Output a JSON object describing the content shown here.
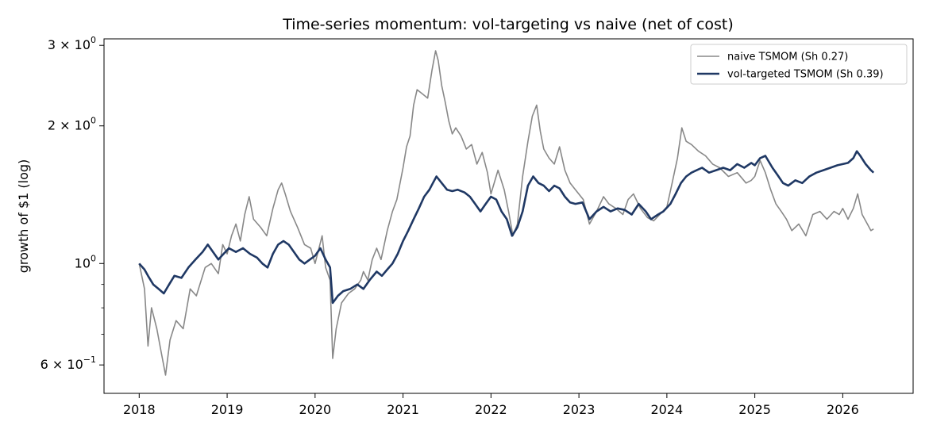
{
  "chart_data": {
    "type": "line",
    "title": "Time-series momentum: vol-targeting vs naive (net of cost)",
    "xlabel": "",
    "ylabel": "growth of $1 (log)",
    "yscale": "log",
    "xlim": [
      2017.6,
      2026.8
    ],
    "ylim": [
      0.52,
      3.1
    ],
    "x_ticks": [
      2018,
      2019,
      2020,
      2021,
      2022,
      2023,
      2024,
      2025,
      2026
    ],
    "y_ticks": [
      {
        "value": 0.6,
        "base": "6 × 10",
        "exp": "−1"
      },
      {
        "value": 1.0,
        "base": "10",
        "exp": "0"
      },
      {
        "value": 2.0,
        "base": "2 × 10",
        "exp": "0"
      },
      {
        "value": 3.0,
        "base": "3 × 10",
        "exp": "0"
      }
    ],
    "grid": false,
    "legend_position": "top-right",
    "series": [
      {
        "name": "naive TSMOM (Sh 0.27)",
        "color": "#888888",
        "points": [
          [
            2018.0,
            1.0
          ],
          [
            2018.06,
            0.88
          ],
          [
            2018.1,
            0.66
          ],
          [
            2018.14,
            0.8
          ],
          [
            2018.2,
            0.72
          ],
          [
            2018.25,
            0.64
          ],
          [
            2018.3,
            0.57
          ],
          [
            2018.35,
            0.68
          ],
          [
            2018.42,
            0.75
          ],
          [
            2018.5,
            0.72
          ],
          [
            2018.58,
            0.88
          ],
          [
            2018.65,
            0.85
          ],
          [
            2018.75,
            0.98
          ],
          [
            2018.82,
            1.0
          ],
          [
            2018.9,
            0.95
          ],
          [
            2018.95,
            1.1
          ],
          [
            2019.0,
            1.05
          ],
          [
            2019.05,
            1.15
          ],
          [
            2019.1,
            1.22
          ],
          [
            2019.15,
            1.12
          ],
          [
            2019.2,
            1.28
          ],
          [
            2019.25,
            1.4
          ],
          [
            2019.3,
            1.25
          ],
          [
            2019.38,
            1.2
          ],
          [
            2019.45,
            1.15
          ],
          [
            2019.52,
            1.32
          ],
          [
            2019.58,
            1.45
          ],
          [
            2019.62,
            1.5
          ],
          [
            2019.66,
            1.42
          ],
          [
            2019.72,
            1.3
          ],
          [
            2019.8,
            1.2
          ],
          [
            2019.88,
            1.1
          ],
          [
            2019.95,
            1.08
          ],
          [
            2020.0,
            1.0
          ],
          [
            2020.08,
            1.15
          ],
          [
            2020.12,
            0.98
          ],
          [
            2020.17,
            0.92
          ],
          [
            2020.2,
            0.62
          ],
          [
            2020.24,
            0.72
          ],
          [
            2020.3,
            0.82
          ],
          [
            2020.38,
            0.86
          ],
          [
            2020.45,
            0.88
          ],
          [
            2020.52,
            0.92
          ],
          [
            2020.55,
            0.96
          ],
          [
            2020.6,
            0.92
          ],
          [
            2020.65,
            1.02
          ],
          [
            2020.7,
            1.08
          ],
          [
            2020.75,
            1.02
          ],
          [
            2020.82,
            1.18
          ],
          [
            2020.88,
            1.3
          ],
          [
            2020.93,
            1.38
          ],
          [
            2021.0,
            1.62
          ],
          [
            2021.04,
            1.8
          ],
          [
            2021.08,
            1.9
          ],
          [
            2021.12,
            2.22
          ],
          [
            2021.16,
            2.4
          ],
          [
            2021.22,
            2.35
          ],
          [
            2021.28,
            2.3
          ],
          [
            2021.33,
            2.65
          ],
          [
            2021.37,
            2.92
          ],
          [
            2021.4,
            2.78
          ],
          [
            2021.44,
            2.45
          ],
          [
            2021.48,
            2.25
          ],
          [
            2021.52,
            2.05
          ],
          [
            2021.56,
            1.92
          ],
          [
            2021.6,
            1.98
          ],
          [
            2021.66,
            1.9
          ],
          [
            2021.72,
            1.78
          ],
          [
            2021.78,
            1.82
          ],
          [
            2021.84,
            1.65
          ],
          [
            2021.9,
            1.75
          ],
          [
            2021.96,
            1.58
          ],
          [
            2022.0,
            1.42
          ],
          [
            2022.08,
            1.6
          ],
          [
            2022.15,
            1.45
          ],
          [
            2022.2,
            1.3
          ],
          [
            2022.25,
            1.15
          ],
          [
            2022.3,
            1.22
          ],
          [
            2022.36,
            1.55
          ],
          [
            2022.42,
            1.85
          ],
          [
            2022.47,
            2.1
          ],
          [
            2022.52,
            2.22
          ],
          [
            2022.56,
            1.95
          ],
          [
            2022.6,
            1.78
          ],
          [
            2022.66,
            1.7
          ],
          [
            2022.72,
            1.65
          ],
          [
            2022.78,
            1.8
          ],
          [
            2022.84,
            1.6
          ],
          [
            2022.9,
            1.5
          ],
          [
            2022.96,
            1.45
          ],
          [
            2023.05,
            1.38
          ],
          [
            2023.12,
            1.22
          ],
          [
            2023.2,
            1.3
          ],
          [
            2023.28,
            1.4
          ],
          [
            2023.34,
            1.35
          ],
          [
            2023.42,
            1.32
          ],
          [
            2023.5,
            1.28
          ],
          [
            2023.56,
            1.38
          ],
          [
            2023.62,
            1.42
          ],
          [
            2023.7,
            1.32
          ],
          [
            2023.78,
            1.26
          ],
          [
            2023.85,
            1.24
          ],
          [
            2023.92,
            1.28
          ],
          [
            2024.0,
            1.33
          ],
          [
            2024.06,
            1.5
          ],
          [
            2024.12,
            1.7
          ],
          [
            2024.17,
            1.98
          ],
          [
            2024.22,
            1.85
          ],
          [
            2024.28,
            1.82
          ],
          [
            2024.36,
            1.76
          ],
          [
            2024.44,
            1.72
          ],
          [
            2024.52,
            1.65
          ],
          [
            2024.6,
            1.62
          ],
          [
            2024.7,
            1.55
          ],
          [
            2024.8,
            1.58
          ],
          [
            2024.9,
            1.5
          ],
          [
            2024.96,
            1.52
          ],
          [
            2025.0,
            1.55
          ],
          [
            2025.06,
            1.68
          ],
          [
            2025.12,
            1.58
          ],
          [
            2025.18,
            1.45
          ],
          [
            2025.24,
            1.35
          ],
          [
            2025.3,
            1.3
          ],
          [
            2025.36,
            1.25
          ],
          [
            2025.42,
            1.18
          ],
          [
            2025.5,
            1.22
          ],
          [
            2025.58,
            1.15
          ],
          [
            2025.66,
            1.28
          ],
          [
            2025.74,
            1.3
          ],
          [
            2025.82,
            1.25
          ],
          [
            2025.9,
            1.3
          ],
          [
            2025.96,
            1.28
          ],
          [
            2026.0,
            1.32
          ],
          [
            2026.06,
            1.25
          ],
          [
            2026.12,
            1.32
          ],
          [
            2026.17,
            1.42
          ],
          [
            2026.22,
            1.28
          ],
          [
            2026.28,
            1.22
          ],
          [
            2026.32,
            1.18
          ],
          [
            2026.35,
            1.19
          ]
        ]
      },
      {
        "name": "vol-targeted TSMOM (Sh 0.39)",
        "color": "#1f3864",
        "points": [
          [
            2018.0,
            1.0
          ],
          [
            2018.06,
            0.97
          ],
          [
            2018.1,
            0.94
          ],
          [
            2018.16,
            0.9
          ],
          [
            2018.22,
            0.88
          ],
          [
            2018.28,
            0.86
          ],
          [
            2018.34,
            0.9
          ],
          [
            2018.4,
            0.94
          ],
          [
            2018.48,
            0.93
          ],
          [
            2018.56,
            0.98
          ],
          [
            2018.64,
            1.02
          ],
          [
            2018.72,
            1.06
          ],
          [
            2018.78,
            1.1
          ],
          [
            2018.84,
            1.06
          ],
          [
            2018.9,
            1.02
          ],
          [
            2018.96,
            1.05
          ],
          [
            2019.02,
            1.08
          ],
          [
            2019.1,
            1.06
          ],
          [
            2019.18,
            1.08
          ],
          [
            2019.26,
            1.05
          ],
          [
            2019.34,
            1.03
          ],
          [
            2019.4,
            1.0
          ],
          [
            2019.46,
            0.98
          ],
          [
            2019.52,
            1.05
          ],
          [
            2019.58,
            1.1
          ],
          [
            2019.64,
            1.12
          ],
          [
            2019.7,
            1.1
          ],
          [
            2019.76,
            1.06
          ],
          [
            2019.82,
            1.02
          ],
          [
            2019.88,
            1.0
          ],
          [
            2019.94,
            1.02
          ],
          [
            2020.0,
            1.04
          ],
          [
            2020.06,
            1.08
          ],
          [
            2020.12,
            1.02
          ],
          [
            2020.17,
            0.98
          ],
          [
            2020.2,
            0.82
          ],
          [
            2020.26,
            0.85
          ],
          [
            2020.32,
            0.87
          ],
          [
            2020.4,
            0.88
          ],
          [
            2020.48,
            0.9
          ],
          [
            2020.55,
            0.88
          ],
          [
            2020.62,
            0.92
          ],
          [
            2020.7,
            0.96
          ],
          [
            2020.76,
            0.94
          ],
          [
            2020.82,
            0.97
          ],
          [
            2020.88,
            1.0
          ],
          [
            2020.94,
            1.05
          ],
          [
            2021.0,
            1.12
          ],
          [
            2021.06,
            1.18
          ],
          [
            2021.12,
            1.25
          ],
          [
            2021.18,
            1.32
          ],
          [
            2021.24,
            1.4
          ],
          [
            2021.3,
            1.45
          ],
          [
            2021.34,
            1.5
          ],
          [
            2021.38,
            1.55
          ],
          [
            2021.44,
            1.5
          ],
          [
            2021.5,
            1.45
          ],
          [
            2021.56,
            1.44
          ],
          [
            2021.62,
            1.45
          ],
          [
            2021.7,
            1.43
          ],
          [
            2021.76,
            1.4
          ],
          [
            2021.82,
            1.35
          ],
          [
            2021.88,
            1.3
          ],
          [
            2021.94,
            1.35
          ],
          [
            2022.0,
            1.4
          ],
          [
            2022.06,
            1.38
          ],
          [
            2022.12,
            1.3
          ],
          [
            2022.18,
            1.25
          ],
          [
            2022.24,
            1.15
          ],
          [
            2022.3,
            1.2
          ],
          [
            2022.36,
            1.3
          ],
          [
            2022.42,
            1.48
          ],
          [
            2022.48,
            1.55
          ],
          [
            2022.54,
            1.5
          ],
          [
            2022.6,
            1.48
          ],
          [
            2022.66,
            1.44
          ],
          [
            2022.72,
            1.48
          ],
          [
            2022.78,
            1.46
          ],
          [
            2022.84,
            1.4
          ],
          [
            2022.9,
            1.36
          ],
          [
            2022.96,
            1.35
          ],
          [
            2023.04,
            1.36
          ],
          [
            2023.12,
            1.25
          ],
          [
            2023.2,
            1.3
          ],
          [
            2023.28,
            1.33
          ],
          [
            2023.36,
            1.3
          ],
          [
            2023.44,
            1.32
          ],
          [
            2023.52,
            1.31
          ],
          [
            2023.6,
            1.28
          ],
          [
            2023.68,
            1.35
          ],
          [
            2023.76,
            1.3
          ],
          [
            2023.82,
            1.25
          ],
          [
            2023.9,
            1.28
          ],
          [
            2023.96,
            1.3
          ],
          [
            2024.04,
            1.35
          ],
          [
            2024.1,
            1.42
          ],
          [
            2024.16,
            1.5
          ],
          [
            2024.22,
            1.55
          ],
          [
            2024.28,
            1.58
          ],
          [
            2024.34,
            1.6
          ],
          [
            2024.4,
            1.62
          ],
          [
            2024.48,
            1.58
          ],
          [
            2024.56,
            1.6
          ],
          [
            2024.64,
            1.62
          ],
          [
            2024.72,
            1.6
          ],
          [
            2024.8,
            1.65
          ],
          [
            2024.88,
            1.62
          ],
          [
            2024.96,
            1.66
          ],
          [
            2025.0,
            1.64
          ],
          [
            2025.06,
            1.7
          ],
          [
            2025.12,
            1.72
          ],
          [
            2025.2,
            1.62
          ],
          [
            2025.26,
            1.56
          ],
          [
            2025.32,
            1.5
          ],
          [
            2025.38,
            1.48
          ],
          [
            2025.46,
            1.52
          ],
          [
            2025.54,
            1.5
          ],
          [
            2025.62,
            1.55
          ],
          [
            2025.7,
            1.58
          ],
          [
            2025.78,
            1.6
          ],
          [
            2025.86,
            1.62
          ],
          [
            2025.94,
            1.64
          ],
          [
            2026.0,
            1.65
          ],
          [
            2026.06,
            1.66
          ],
          [
            2026.12,
            1.7
          ],
          [
            2026.16,
            1.76
          ],
          [
            2026.2,
            1.72
          ],
          [
            2026.26,
            1.65
          ],
          [
            2026.32,
            1.6
          ],
          [
            2026.35,
            1.58
          ]
        ]
      }
    ]
  }
}
